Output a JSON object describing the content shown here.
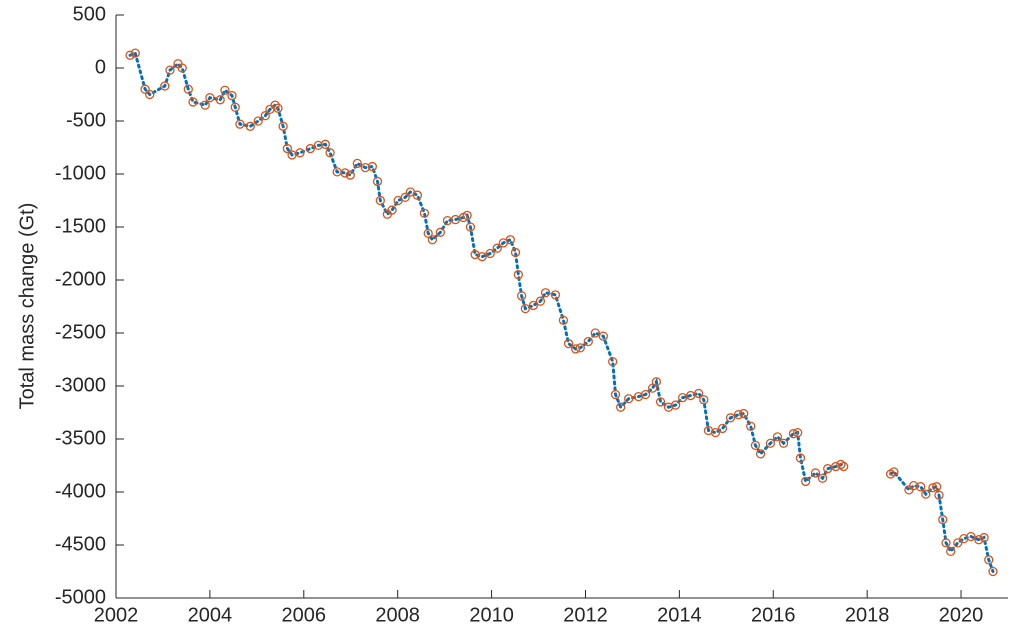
{
  "chart_data": {
    "type": "line",
    "ylabel": "Total mass change (Gt)",
    "x": [
      2002.3,
      2002.41,
      2002.62,
      2002.72,
      2003.04,
      2003.15,
      2003.32,
      2003.41,
      2003.54,
      2003.64,
      2003.9,
      2004.0,
      2004.22,
      2004.32,
      2004.47,
      2004.54,
      2004.64,
      2004.86,
      2005.03,
      2005.18,
      2005.28,
      2005.39,
      2005.45,
      2005.56,
      2005.65,
      2005.75,
      2005.92,
      2006.14,
      2006.31,
      2006.46,
      2006.56,
      2006.71,
      2006.88,
      2006.99,
      2007.14,
      2007.31,
      2007.46,
      2007.57,
      2007.63,
      2007.78,
      2007.88,
      2008.01,
      2008.16,
      2008.27,
      2008.42,
      2008.57,
      2008.65,
      2008.74,
      2008.91,
      2009.06,
      2009.23,
      2009.4,
      2009.48,
      2009.55,
      2009.65,
      2009.8,
      2009.97,
      2010.12,
      2010.25,
      2010.4,
      2010.51,
      2010.57,
      2010.64,
      2010.72,
      2010.89,
      2011.04,
      2011.15,
      2011.36,
      2011.53,
      2011.64,
      2011.79,
      2011.89,
      2012.06,
      2012.21,
      2012.38,
      2012.58,
      2012.64,
      2012.75,
      2012.92,
      2013.13,
      2013.28,
      2013.43,
      2013.51,
      2013.6,
      2013.77,
      2013.92,
      2014.07,
      2014.24,
      2014.41,
      2014.52,
      2014.62,
      2014.77,
      2014.92,
      2015.09,
      2015.26,
      2015.37,
      2015.52,
      2015.62,
      2015.73,
      2015.94,
      2016.09,
      2016.22,
      2016.43,
      2016.52,
      2016.58,
      2016.69,
      2016.9,
      2017.05,
      2017.16,
      2017.33,
      2017.44,
      2017.5,
      2018.0,
      2018.5,
      2018.57,
      2018.89,
      2018.99,
      2019.14,
      2019.25,
      2019.4,
      2019.48,
      2019.53,
      2019.61,
      2019.68,
      2019.78,
      2019.93,
      2020.06,
      2020.21,
      2020.38,
      2020.49,
      2020.59,
      2020.68
    ],
    "values": [
      120,
      140,
      -200,
      -250,
      -170,
      -20,
      40,
      0,
      -200,
      -320,
      -350,
      -280,
      -300,
      -210,
      -260,
      -370,
      -530,
      -550,
      -500,
      -450,
      -390,
      -350,
      -380,
      -550,
      -760,
      -820,
      -800,
      -760,
      -730,
      -720,
      -800,
      -980,
      -990,
      -1010,
      -900,
      -940,
      -930,
      -1070,
      -1250,
      -1380,
      -1340,
      -1250,
      -1220,
      -1170,
      -1200,
      -1370,
      -1560,
      -1620,
      -1550,
      -1440,
      -1430,
      -1410,
      -1390,
      -1500,
      -1760,
      -1780,
      -1750,
      -1700,
      -1650,
      -1620,
      -1740,
      -1950,
      -2150,
      -2270,
      -2240,
      -2200,
      -2120,
      -2140,
      -2380,
      -2600,
      -2650,
      -2640,
      -2580,
      -2500,
      -2530,
      -2770,
      -3080,
      -3200,
      -3120,
      -3100,
      -3080,
      -3020,
      -2960,
      -3150,
      -3200,
      -3180,
      -3110,
      -3090,
      -3070,
      -3130,
      -3420,
      -3440,
      -3400,
      -3300,
      -3270,
      -3260,
      -3380,
      -3560,
      -3640,
      -3540,
      -3480,
      -3540,
      -3450,
      -3440,
      -3680,
      -3900,
      -3820,
      -3870,
      -3780,
      -3760,
      -3740,
      -3760,
      null,
      -3830,
      -3810,
      -3980,
      -3940,
      -3950,
      -4020,
      -3960,
      -3950,
      -4030,
      -4260,
      -4480,
      -4560,
      -4480,
      -4440,
      -4420,
      -4450,
      -4430,
      -4640,
      -4750
    ],
    "color": "#0072bd",
    "marker_color": "#d95319",
    "xlim": [
      2002,
      2021
    ],
    "xticks": [
      2002,
      2004,
      2006,
      2008,
      2010,
      2012,
      2014,
      2016,
      2018,
      2020
    ],
    "ylim": [
      -5000,
      500
    ],
    "yticks": [
      -5000,
      -4500,
      -4000,
      -3500,
      -3000,
      -2500,
      -2000,
      -1500,
      -1000,
      -500,
      0,
      500
    ]
  }
}
